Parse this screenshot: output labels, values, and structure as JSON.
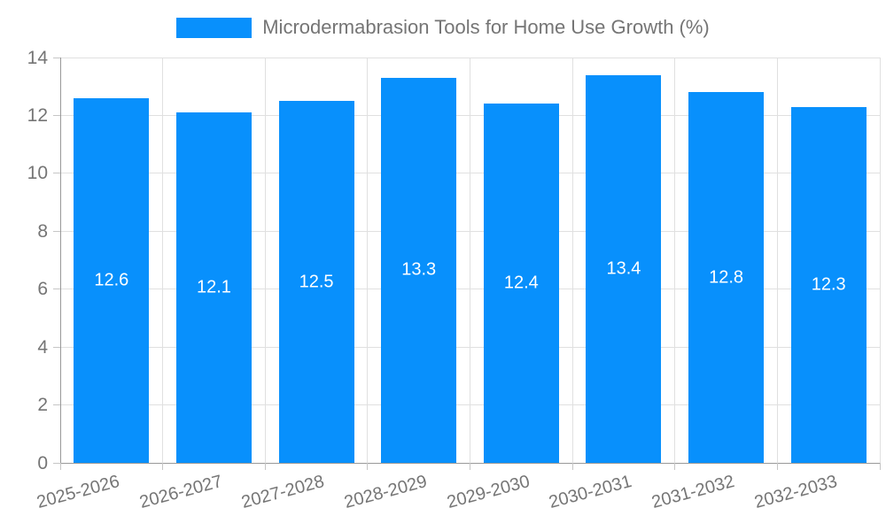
{
  "legend": {
    "label": "Microdermabrasion Tools for Home Use Growth (%)"
  },
  "chart_data": {
    "type": "bar",
    "title": "Microdermabrasion Tools for Home Use Growth (%)",
    "categories": [
      "2025-2026",
      "2026-2027",
      "2027-2028",
      "2028-2029",
      "2029-2030",
      "2030-2031",
      "2031-2032",
      "2032-2033"
    ],
    "values": [
      12.6,
      12.1,
      12.5,
      13.3,
      12.4,
      13.4,
      12.8,
      12.3
    ],
    "value_labels": [
      "12.6",
      "12.1",
      "12.5",
      "13.3",
      "12.4",
      "13.4",
      "12.8",
      "12.3"
    ],
    "xlabel": "",
    "ylabel": "",
    "ylim": [
      0,
      14
    ],
    "ytick_interval": 2,
    "yticks": [
      0,
      2,
      4,
      6,
      8,
      10,
      12,
      14
    ],
    "grid": true,
    "legend_position": "top-center",
    "value_label_position": "inside-middle"
  },
  "colors": {
    "bar": "#0890FC",
    "axis_line": "#999999",
    "gridline": "#E0E0E0",
    "tick_mark": "#C6C6C6",
    "tick_label": "#757575",
    "legend_text": "#757575",
    "value_label": "#FFFFFF",
    "background": "#FFFFFF"
  }
}
